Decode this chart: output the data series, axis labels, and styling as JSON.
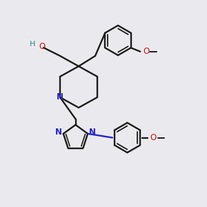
{
  "bg_color": "#eaeaee",
  "bond_color": "#1a1a1a",
  "nitrogen_color": "#2222cc",
  "oxygen_color": "#cc1111",
  "ho_color": "#2a8888",
  "figsize": [
    3.0,
    3.0
  ],
  "dpi": 100,
  "xlim": [
    0,
    10
  ],
  "ylim": [
    0,
    10
  ]
}
